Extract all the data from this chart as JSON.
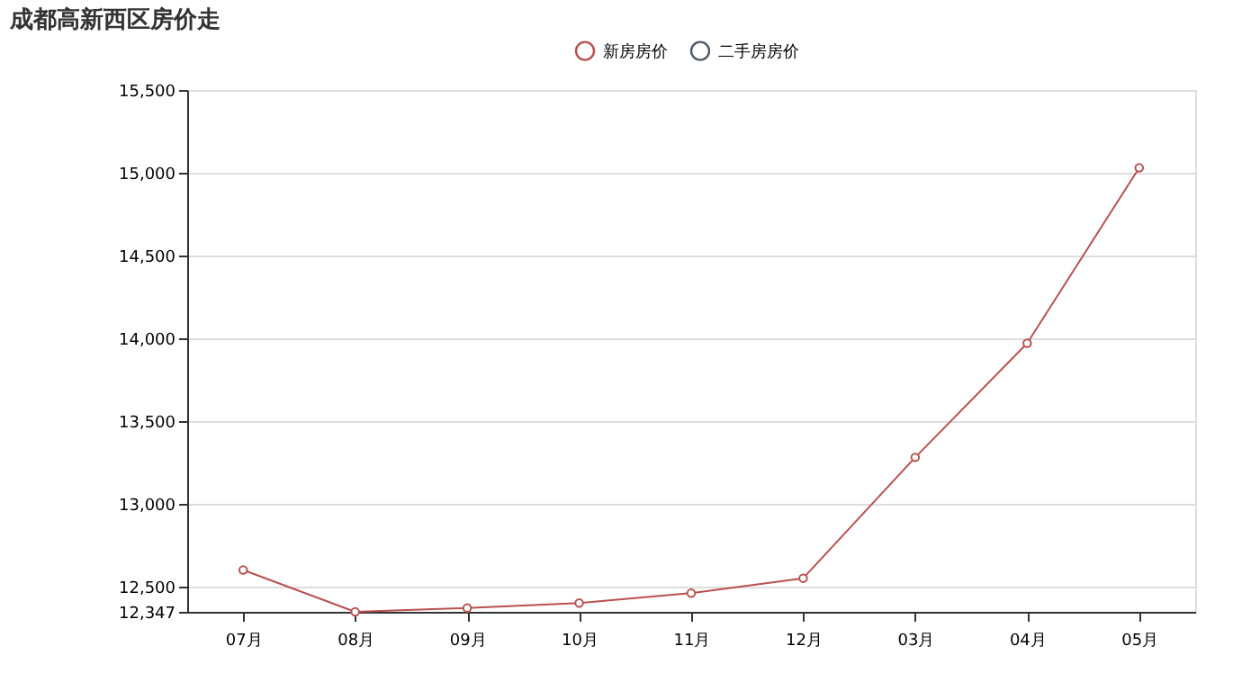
{
  "chart_data": {
    "type": "line",
    "title": "成都高新西区房价走",
    "categories": [
      "07月",
      "08月",
      "09月",
      "10月",
      "11月",
      "12月",
      "03月",
      "04月",
      "05月"
    ],
    "series": [
      {
        "name": "新房房价",
        "color": "#b8514f",
        "values": [
          12600,
          12347,
          12370,
          12400,
          12460,
          12550,
          13280,
          13970,
          15030
        ]
      },
      {
        "name": "二手房房价",
        "color": "#4f5b66",
        "values": [
          null,
          null,
          null,
          null,
          null,
          null,
          null,
          null,
          null
        ]
      }
    ],
    "ylim": [
      12347,
      15500
    ],
    "yticks": [
      {
        "value": 12347,
        "label": "12,347"
      },
      {
        "value": 12500,
        "label": "12,500"
      },
      {
        "value": 13000,
        "label": "13,000"
      },
      {
        "value": 13500,
        "label": "13,500"
      },
      {
        "value": 14000,
        "label": "14,000"
      },
      {
        "value": 14500,
        "label": "14,500"
      },
      {
        "value": 15000,
        "label": "15,000"
      },
      {
        "value": 15500,
        "label": "15,500"
      }
    ],
    "grid": "y",
    "legend": "top",
    "marker": "circle",
    "line_style": "solid"
  }
}
